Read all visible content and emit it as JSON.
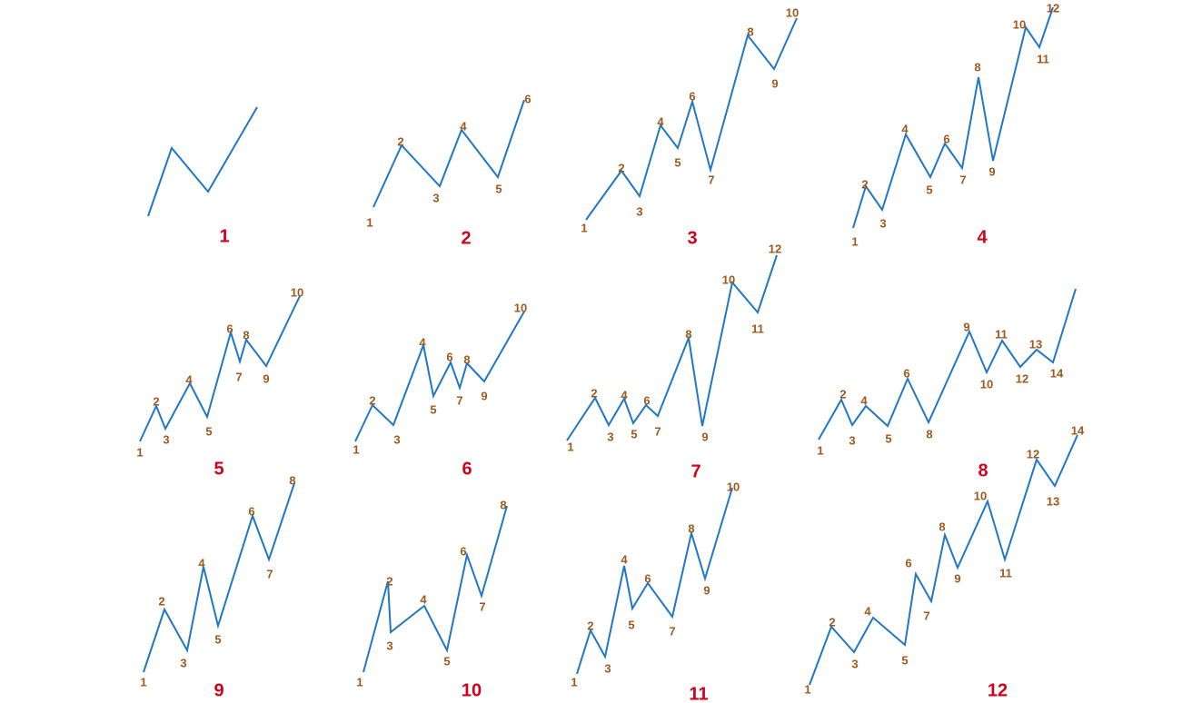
{
  "colors": {
    "line": "#1f77c8",
    "point_label": "#a0581c",
    "panel_number": "#d0021b"
  },
  "panels": [
    {
      "number": "1",
      "labels": []
    },
    {
      "number": "2",
      "labels": [
        "1",
        "2",
        "3",
        "4",
        "5",
        "6"
      ]
    },
    {
      "number": "3",
      "labels": [
        "1",
        "2",
        "3",
        "4",
        "5",
        "6",
        "7",
        "8",
        "9",
        "10"
      ]
    },
    {
      "number": "4",
      "labels": [
        "1",
        "2",
        "3",
        "4",
        "5",
        "6",
        "7",
        "8",
        "9",
        "10",
        "11",
        "12"
      ]
    },
    {
      "number": "5",
      "labels": [
        "1",
        "2",
        "3",
        "4",
        "5",
        "6",
        "7",
        "8",
        "9",
        "10"
      ]
    },
    {
      "number": "6",
      "labels": [
        "1",
        "2",
        "3",
        "4",
        "5",
        "6",
        "7",
        "8",
        "9",
        "10"
      ]
    },
    {
      "number": "7",
      "labels": [
        "1",
        "2",
        "3",
        "4",
        "5",
        "6",
        "7",
        "8",
        "9",
        "10",
        "11",
        "12"
      ]
    },
    {
      "number": "8",
      "labels": [
        "1",
        "2",
        "3",
        "4",
        "5",
        "6",
        "8",
        "9",
        "10",
        "11",
        "12",
        "13",
        "14"
      ]
    },
    {
      "number": "9",
      "labels": [
        "1",
        "2",
        "3",
        "4",
        "5",
        "6",
        "7",
        "8"
      ]
    },
    {
      "number": "10",
      "labels": [
        "1",
        "2",
        "3",
        "4",
        "5",
        "6",
        "7",
        "8"
      ]
    },
    {
      "number": "11",
      "labels": [
        "1",
        "2",
        "3",
        "4",
        "5",
        "6",
        "7",
        "8",
        "9",
        "10"
      ]
    },
    {
      "number": "12",
      "labels": [
        "1",
        "2",
        "3",
        "4",
        "5",
        "6",
        "7",
        "8",
        "9",
        "10",
        "11",
        "12",
        "13",
        "14"
      ]
    }
  ]
}
